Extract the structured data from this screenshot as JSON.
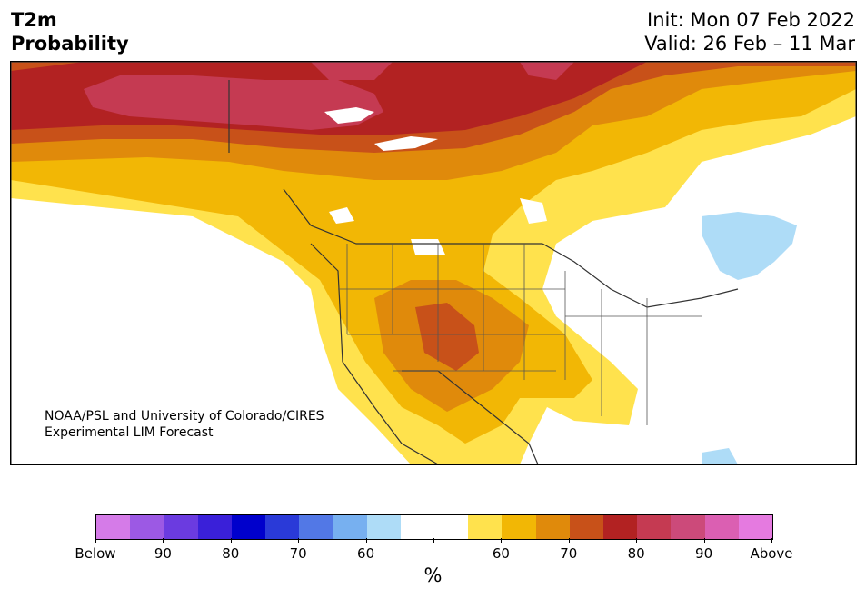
{
  "header": {
    "title_line1": "T2m",
    "title_line2": "Probability",
    "init": "Init: Mon 07 Feb 2022",
    "valid": "Valid: 26 Feb – 11 Mar"
  },
  "map": {
    "credit_line1": "NOAA/PSL and University of Colorado/CIRES",
    "credit_line2": "Experimental LIM Forecast",
    "colors": {
      "above_50": "#ffe24d",
      "above_60": "#f2b705",
      "above_65": "#e08a0b",
      "above_70": "#c85119",
      "above_75": "#b22222",
      "above_80": "#c53a52",
      "below_55": "#aedcf7",
      "land": "#ffffff",
      "border": "#333333"
    }
  },
  "colorbar": {
    "colors": [
      "#d57be8",
      "#9c59e4",
      "#6b3be0",
      "#3a20d9",
      "#0000cc",
      "#2a3ad8",
      "#5278e6",
      "#77b0f0",
      "#aedcf7",
      "#ffffff",
      "#ffffff",
      "#ffe24d",
      "#f2b705",
      "#e08a0b",
      "#c85119",
      "#b22222",
      "#c53a52",
      "#cc4a7a",
      "#db5fb2",
      "#e57ae0"
    ],
    "tick_labels": [
      "Below",
      "90",
      "80",
      "70",
      "60",
      "",
      "60",
      "70",
      "80",
      "90",
      "Above"
    ],
    "unit": "%"
  }
}
